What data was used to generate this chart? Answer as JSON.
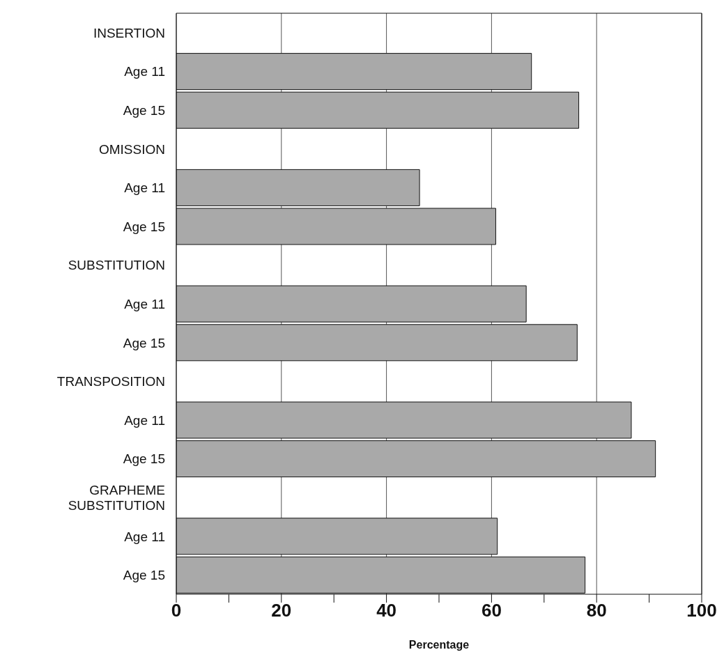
{
  "chart_data": {
    "type": "bar",
    "orientation": "horizontal",
    "xlabel": "Percentage",
    "categories": [
      "INSERTION",
      "Age 11",
      "Age 15",
      "OMISSION",
      "Age 11",
      "Age 15",
      "SUBSTITUTION",
      "Age 11",
      "Age 15",
      "TRANSPOSITION",
      "Age 11",
      "Age 15",
      "GRAPHEME SUBSTITUTION",
      "Age 11",
      "Age 15"
    ],
    "values": [
      null,
      67.6,
      76.6,
      null,
      46.3,
      60.8,
      null,
      66.6,
      76.3,
      null,
      86.6,
      91.2,
      null,
      61.1,
      77.8
    ],
    "color": "#a9a9a9",
    "xlim": [
      0,
      100
    ],
    "xticks": [
      0,
      {
        "value": 10,
        "label": null
      },
      20,
      {
        "value": 30,
        "label": null
      },
      40,
      {
        "value": 50,
        "label": null
      },
      60,
      {
        "value": 70,
        "label": null
      },
      80,
      {
        "value": 90,
        "label": null
      },
      100
    ],
    "grid": "x"
  }
}
